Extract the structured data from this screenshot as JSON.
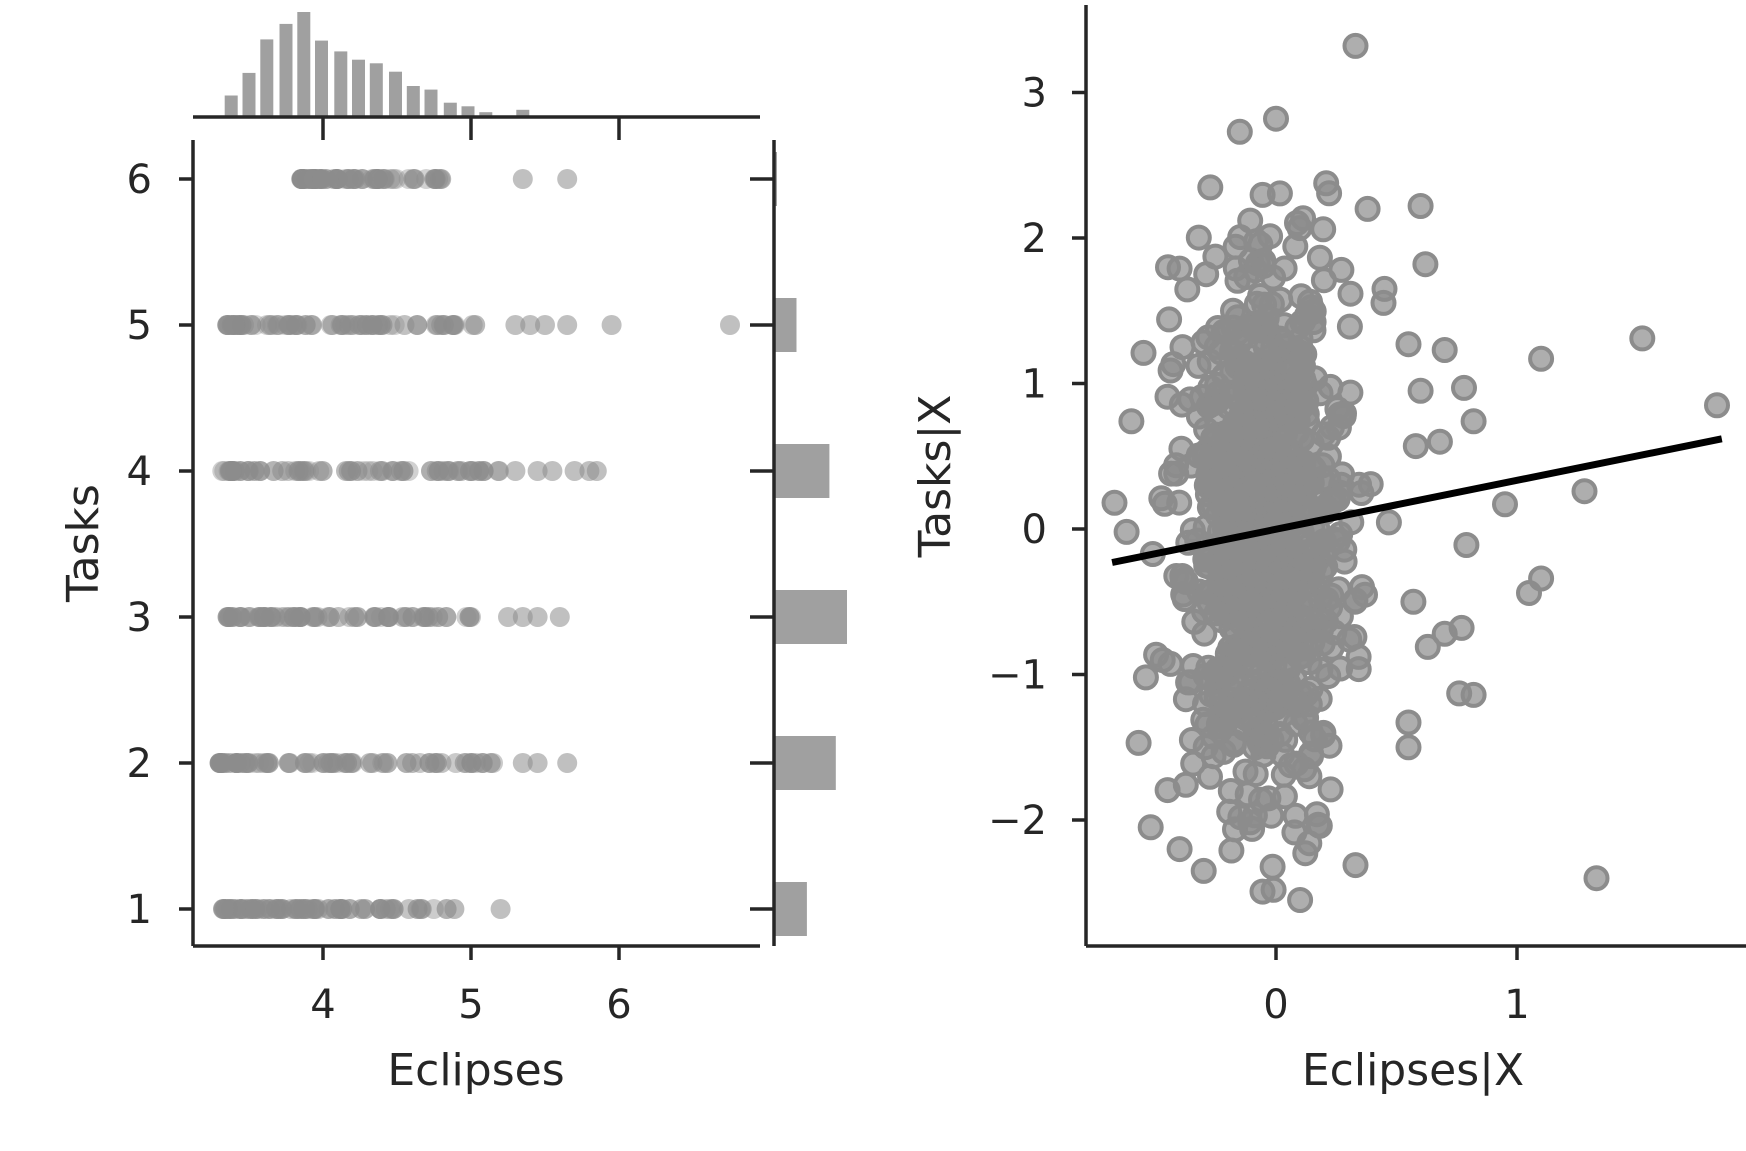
{
  "chart_data": [
    {
      "type": "scatter",
      "subtype": "joint_plot_with_marginal_histograms",
      "xlabel": "Eclipses",
      "ylabel": "Tasks",
      "xlim": [
        3.15,
        7.0
      ],
      "ylim": [
        0.75,
        6.25
      ],
      "xticks": [
        "4",
        "5",
        "6"
      ],
      "yticks": [
        "1",
        "2",
        "3",
        "4",
        "5",
        "6"
      ],
      "grid": false,
      "point_color": "#8c8c8c",
      "rows": [
        {
          "y": 1,
          "x_min": 3.3,
          "x_max": 4.95,
          "outliers": [
            5.2
          ]
        },
        {
          "y": 2,
          "x_min": 3.3,
          "x_max": 5.2,
          "outliers": [
            5.35,
            5.45,
            5.65
          ]
        },
        {
          "y": 3,
          "x_min": 3.35,
          "x_max": 5.05,
          "outliers": [
            5.25,
            5.35,
            5.45,
            5.6
          ]
        },
        {
          "y": 4,
          "x_min": 3.3,
          "x_max": 5.2,
          "outliers": [
            5.3,
            5.45,
            5.55,
            5.7,
            5.8,
            5.85
          ]
        },
        {
          "y": 5,
          "x_min": 3.35,
          "x_max": 5.05,
          "outliers": [
            5.3,
            5.4,
            5.5,
            5.65,
            5.95,
            6.75
          ]
        },
        {
          "y": 6,
          "x_min": 3.85,
          "x_max": 4.8,
          "outliers": [
            5.35,
            5.65
          ]
        }
      ],
      "marginal_x_histogram": {
        "bin_centers": [
          3.38,
          3.5,
          3.62,
          3.75,
          3.87,
          3.99,
          4.12,
          4.24,
          4.36,
          4.49,
          4.61,
          4.73,
          4.86,
          4.98,
          5.1,
          5.35
        ],
        "counts": [
          18,
          37,
          65,
          78,
          88,
          64,
          55,
          48,
          45,
          38,
          26,
          23,
          12,
          9,
          4,
          6
        ],
        "bar_color": "#a0a0a0"
      },
      "marginal_y_histogram": {
        "categories": [
          1,
          2,
          3,
          4,
          5,
          6
        ],
        "counts": [
          88,
          165,
          195,
          148,
          60,
          8
        ],
        "bar_color": "#a0a0a0"
      }
    },
    {
      "type": "scatter",
      "subtype": "added_variable_plot",
      "xlabel": "Eclipses|X",
      "ylabel": "Tasks|X",
      "xlim": [
        -0.8,
        1.95
      ],
      "ylim": [
        -2.85,
        3.6
      ],
      "xticks": [
        "0",
        "1"
      ],
      "yticks": [
        "−2",
        "−1",
        "0",
        "1",
        "2",
        "3"
      ],
      "grid": false,
      "point_color": "#8c8c8c",
      "fit_line": {
        "x": [
          -0.68,
          1.85
        ],
        "y": [
          -0.23,
          0.62
        ],
        "color": "#000000"
      },
      "cloud": {
        "x_mean": -0.05,
        "x_sd": 0.17,
        "y_mean": 0.0,
        "y_sd": 1.0,
        "count": 900
      },
      "notable_points": [
        [
          0.33,
          3.32
        ],
        [
          0.0,
          2.82
        ],
        [
          -0.15,
          2.73
        ],
        [
          0.6,
          2.22
        ],
        [
          0.38,
          2.2
        ],
        [
          1.52,
          1.31
        ],
        [
          1.83,
          0.85
        ],
        [
          1.1,
          1.17
        ],
        [
          0.78,
          0.97
        ],
        [
          0.82,
          0.74
        ],
        [
          1.28,
          0.26
        ],
        [
          0.95,
          0.17
        ],
        [
          1.1,
          -0.34
        ],
        [
          1.05,
          -0.44
        ],
        [
          0.79,
          -0.11
        ],
        [
          0.77,
          -0.68
        ],
        [
          0.7,
          -0.72
        ],
        [
          0.63,
          -0.81
        ],
        [
          0.76,
          -1.13
        ],
        [
          0.82,
          -1.14
        ],
        [
          1.33,
          -2.4
        ],
        [
          0.33,
          -2.31
        ],
        [
          0.1,
          -2.55
        ],
        [
          -0.01,
          -2.48
        ],
        [
          -0.3,
          -2.35
        ],
        [
          -0.4,
          -2.2
        ],
        [
          -0.52,
          -2.05
        ],
        [
          -0.57,
          -1.47
        ],
        [
          -0.54,
          -1.02
        ],
        [
          -0.47,
          -0.9
        ],
        [
          -0.67,
          0.18
        ],
        [
          -0.62,
          -0.02
        ],
        [
          -0.6,
          0.74
        ],
        [
          -0.55,
          1.21
        ],
        [
          -0.4,
          1.79
        ],
        [
          0.55,
          -1.33
        ],
        [
          0.55,
          -1.5
        ],
        [
          0.57,
          -0.5
        ],
        [
          0.58,
          0.57
        ],
        [
          0.68,
          0.6
        ],
        [
          0.62,
          1.82
        ],
        [
          0.45,
          1.65
        ],
        [
          0.6,
          0.95
        ],
        [
          0.55,
          1.27
        ],
        [
          0.7,
          1.23
        ]
      ]
    }
  ]
}
